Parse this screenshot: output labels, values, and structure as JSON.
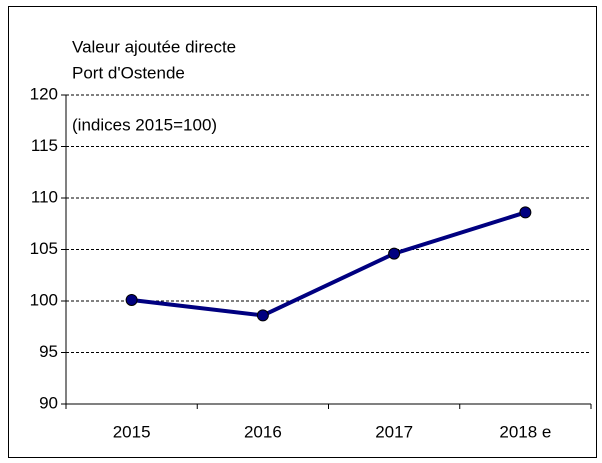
{
  "chart_data": {
    "type": "line",
    "title": "Valeur ajoutée directe",
    "subtitle": "Port d'Ostende",
    "annotation": "(indices 2015=100)",
    "categories": [
      "2015",
      "2016",
      "2017",
      "2018 e"
    ],
    "series": [
      {
        "name": "Valeur ajoutée directe",
        "color": "#000080",
        "values": [
          100.1,
          98.6,
          104.6,
          108.6
        ]
      }
    ],
    "ylim": [
      90,
      120
    ],
    "yticks": [
      90,
      95,
      100,
      105,
      110,
      115,
      120
    ],
    "grid": true
  }
}
